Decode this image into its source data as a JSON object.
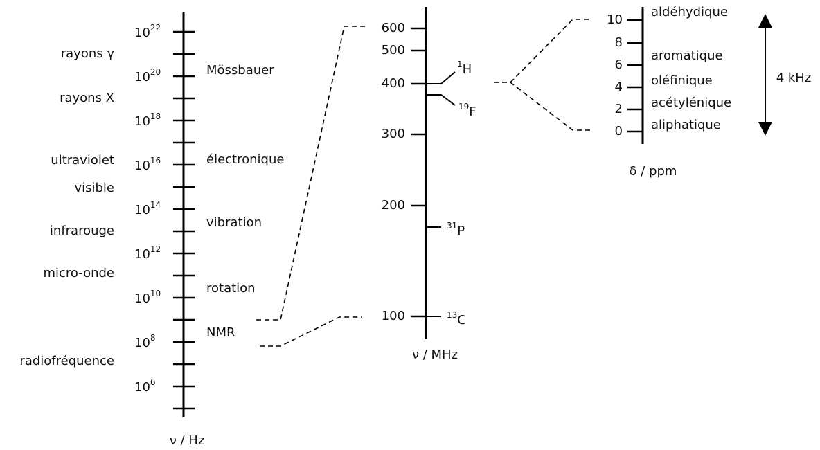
{
  "spectrum_axis": {
    "label": "ν / Hz",
    "ticks": [
      {
        "base": "10",
        "exponent": "22"
      },
      {
        "base": "10",
        "exponent": "20"
      },
      {
        "base": "10",
        "exponent": "18"
      },
      {
        "base": "10",
        "exponent": "16"
      },
      {
        "base": "10",
        "exponent": "14"
      },
      {
        "base": "10",
        "exponent": "12"
      },
      {
        "base": "10",
        "exponent": "10"
      },
      {
        "base": "10",
        "exponent": "8"
      },
      {
        "base": "10",
        "exponent": "6"
      }
    ],
    "regions": [
      "rayons γ",
      "rayons X",
      "ultraviolet",
      "visible",
      "infrarouge",
      "micro-onde",
      "radiofréquence"
    ],
    "transitions": [
      "Mössbauer",
      "électronique",
      "vibration",
      "rotation",
      "NMR"
    ]
  },
  "nmr_axis": {
    "label": "ν / MHz",
    "ticks": [
      "600",
      "500",
      "400",
      "300",
      "200",
      "100"
    ],
    "nuclei": [
      {
        "mass": "1",
        "symbol": "H"
      },
      {
        "mass": "19",
        "symbol": "F"
      },
      {
        "mass": "31",
        "symbol": "P"
      },
      {
        "mass": "13",
        "symbol": "C"
      }
    ]
  },
  "shift_axis": {
    "label": "δ / ppm",
    "ticks": [
      "10",
      "8",
      "6",
      "4",
      "2",
      "0"
    ],
    "groups": [
      "aldéhydique",
      "aromatique",
      "oléfinique",
      "acétylénique",
      "aliphatique"
    ],
    "range_label": "4 kHz"
  }
}
